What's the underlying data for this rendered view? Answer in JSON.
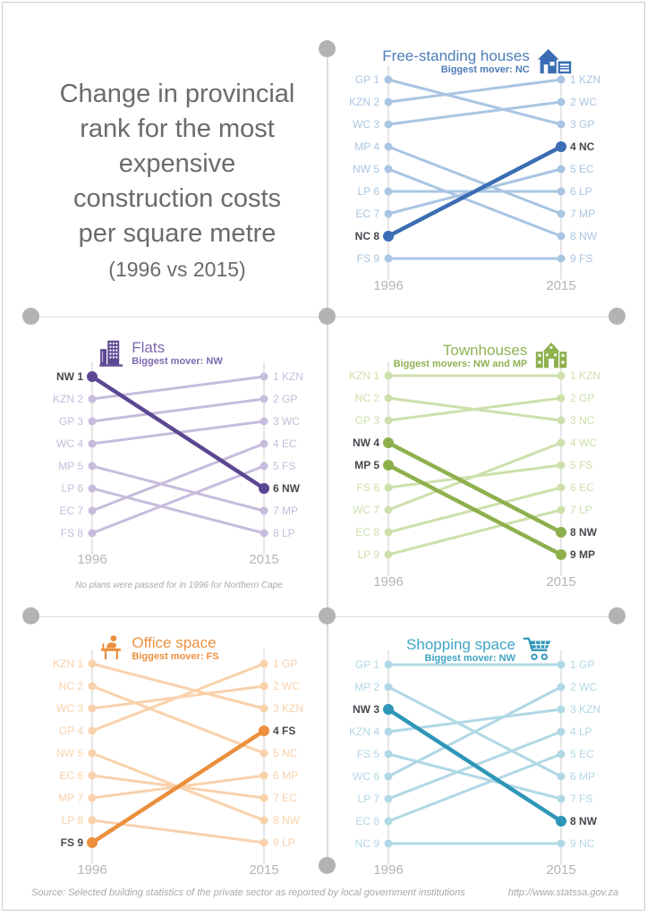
{
  "page": {
    "title_lines": [
      "Change in provincial",
      "rank for the most",
      "expensive",
      "construction costs",
      "per square metre"
    ],
    "subtitle": "(1996 vs 2015)",
    "footer_source": "Source: Selected building statistics of the private sector as reported by local government institutions",
    "footer_url": "http://www.statssa.gov.za"
  },
  "colors": {
    "pin": "#b3b3b3",
    "grid_line": "#dcdcdc",
    "axis_line": "#d9d9d9",
    "year_label": "#b5b5b5",
    "main_title": "#6b6b6b",
    "footnote": "#a9a9a9",
    "highlight_label": "#45494e"
  },
  "chart_data": [
    {
      "type": "line",
      "variant": "slopegraph",
      "title": "Free-standing houses",
      "subtitle": "Biggest mover: NC",
      "icon": "house-icon",
      "color_light": "#a9c5e2",
      "color_dark": "#3a6db3",
      "title_color": "#4e7db9",
      "x": [
        "1996",
        "2015"
      ],
      "series": [
        {
          "name": "GP",
          "values": [
            1,
            3
          ],
          "highlight": false
        },
        {
          "name": "KZN",
          "values": [
            2,
            1
          ],
          "highlight": false
        },
        {
          "name": "WC",
          "values": [
            3,
            2
          ],
          "highlight": false
        },
        {
          "name": "MP",
          "values": [
            4,
            7
          ],
          "highlight": false
        },
        {
          "name": "NW",
          "values": [
            5,
            8
          ],
          "highlight": false
        },
        {
          "name": "LP",
          "values": [
            6,
            6
          ],
          "highlight": false
        },
        {
          "name": "EC",
          "values": [
            7,
            5
          ],
          "highlight": false
        },
        {
          "name": "NC",
          "values": [
            8,
            4
          ],
          "highlight": true
        },
        {
          "name": "FS",
          "values": [
            9,
            9
          ],
          "highlight": false
        }
      ]
    },
    {
      "type": "line",
      "variant": "slopegraph",
      "title": "Flats",
      "subtitle": "Biggest mover: NW",
      "icon": "flats-icon",
      "color_light": "#c7bcdc",
      "color_dark": "#5c4792",
      "title_color": "#7d68ad",
      "x": [
        "1996",
        "2015"
      ],
      "footnote": "No plans were passed for in 1996 for Northern Cape",
      "series": [
        {
          "name": "NW",
          "values": [
            1,
            6
          ],
          "highlight": true
        },
        {
          "name": "KZN",
          "values": [
            2,
            1
          ],
          "highlight": false
        },
        {
          "name": "GP",
          "values": [
            3,
            2
          ],
          "highlight": false
        },
        {
          "name": "WC",
          "values": [
            4,
            3
          ],
          "highlight": false
        },
        {
          "name": "MP",
          "values": [
            5,
            7
          ],
          "highlight": false
        },
        {
          "name": "LP",
          "values": [
            6,
            8
          ],
          "highlight": false
        },
        {
          "name": "EC",
          "values": [
            7,
            4
          ],
          "highlight": false
        },
        {
          "name": "FS",
          "values": [
            8,
            5
          ],
          "highlight": false
        }
      ]
    },
    {
      "type": "line",
      "variant": "slopegraph",
      "title": "Townhouses",
      "subtitle": "Biggest movers: NW and MP",
      "icon": "townhouse-icon",
      "color_light": "#cde0ac",
      "color_dark": "#8db04c",
      "title_color": "#8fb254",
      "x": [
        "1996",
        "2015"
      ],
      "series": [
        {
          "name": "KZN",
          "values": [
            1,
            1
          ],
          "highlight": false
        },
        {
          "name": "NC",
          "values": [
            2,
            3
          ],
          "highlight": false
        },
        {
          "name": "GP",
          "values": [
            3,
            2
          ],
          "highlight": false
        },
        {
          "name": "NW",
          "values": [
            4,
            8
          ],
          "highlight": true
        },
        {
          "name": "MP",
          "values": [
            5,
            9
          ],
          "highlight": true
        },
        {
          "name": "FS",
          "values": [
            6,
            5
          ],
          "highlight": false
        },
        {
          "name": "WC",
          "values": [
            7,
            4
          ],
          "highlight": false
        },
        {
          "name": "EC",
          "values": [
            8,
            6
          ],
          "highlight": false
        },
        {
          "name": "LP",
          "values": [
            9,
            7
          ],
          "highlight": false
        }
      ]
    },
    {
      "type": "line",
      "variant": "slopegraph",
      "title": "Office space",
      "subtitle": "Biggest mover: FS",
      "icon": "office-desk-icon",
      "color_light": "#f9d1ab",
      "color_dark": "#eb8f3d",
      "title_color": "#ec9240",
      "x": [
        "1996",
        "2015"
      ],
      "series": [
        {
          "name": "KZN",
          "values": [
            1,
            3
          ],
          "highlight": false
        },
        {
          "name": "NC",
          "values": [
            2,
            5
          ],
          "highlight": false
        },
        {
          "name": "WC",
          "values": [
            3,
            2
          ],
          "highlight": false
        },
        {
          "name": "GP",
          "values": [
            4,
            1
          ],
          "highlight": false
        },
        {
          "name": "NW",
          "values": [
            5,
            8
          ],
          "highlight": false
        },
        {
          "name": "EC",
          "values": [
            6,
            7
          ],
          "highlight": false
        },
        {
          "name": "MP",
          "values": [
            7,
            6
          ],
          "highlight": false
        },
        {
          "name": "LP",
          "values": [
            8,
            9
          ],
          "highlight": false
        },
        {
          "name": "FS",
          "values": [
            9,
            4
          ],
          "highlight": true
        }
      ]
    },
    {
      "type": "line",
      "variant": "slopegraph",
      "title": "Shopping space",
      "subtitle": "Biggest mover: NW",
      "icon": "shopping-cart-icon",
      "color_light": "#b0d8e5",
      "color_dark": "#2e96b8",
      "title_color": "#41a4c4",
      "x": [
        "1996",
        "2015"
      ],
      "series": [
        {
          "name": "GP",
          "values": [
            1,
            1
          ],
          "highlight": false
        },
        {
          "name": "MP",
          "values": [
            2,
            6
          ],
          "highlight": false
        },
        {
          "name": "NW",
          "values": [
            3,
            8
          ],
          "highlight": true
        },
        {
          "name": "KZN",
          "values": [
            4,
            3
          ],
          "highlight": false
        },
        {
          "name": "FS",
          "values": [
            5,
            7
          ],
          "highlight": false
        },
        {
          "name": "WC",
          "values": [
            6,
            2
          ],
          "highlight": false
        },
        {
          "name": "LP",
          "values": [
            7,
            4
          ],
          "highlight": false
        },
        {
          "name": "EC",
          "values": [
            8,
            5
          ],
          "highlight": false
        },
        {
          "name": "NC",
          "values": [
            9,
            9
          ],
          "highlight": false
        }
      ]
    }
  ]
}
